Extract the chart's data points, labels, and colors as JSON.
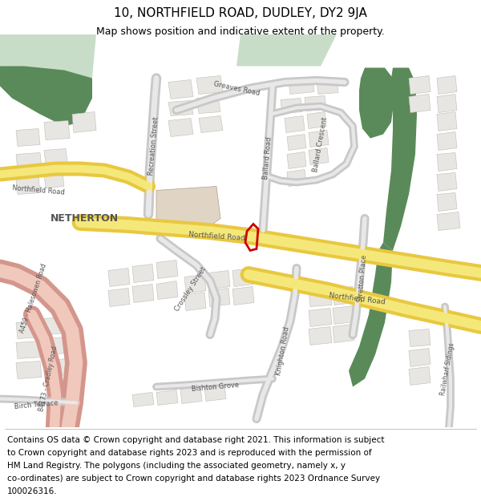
{
  "title_line1": "10, NORTHFIELD ROAD, DUDLEY, DY2 9JA",
  "title_line2": "Map shows position and indicative extent of the property.",
  "footer_lines": [
    "Contains OS data © Crown copyright and database right 2021. This information is subject",
    "to Crown copyright and database rights 2023 and is reproduced with the permission of",
    "HM Land Registry. The polygons (including the associated geometry, namely x, y",
    "co-ordinates) are subject to Crown copyright and database rights 2023 Ordnance Survey",
    "100026316."
  ],
  "title_fontsize": 11,
  "subtitle_fontsize": 9,
  "footer_fontsize": 7.5,
  "fig_width": 6.0,
  "fig_height": 6.25,
  "dpi": 100,
  "map_bg_color": "#f2f0ed",
  "background_color": "#ffffff",
  "green_dark": "#5a8a5a",
  "green_light": "#c8ddc8",
  "road_yellow_outer": "#e8c840",
  "road_yellow_inner": "#f5e87a",
  "road_gray_outer": "#c8c8c8",
  "road_gray_inner": "#e8e8e8",
  "road_pink_outer": "#d4968c",
  "road_pink_inner": "#f0c8bc",
  "red_outline": "#cc0000",
  "beige_block": "#e0d5c5",
  "building_fill": "#e8e6e2",
  "building_edge": "#c0bdb8",
  "text_color": "#555555"
}
